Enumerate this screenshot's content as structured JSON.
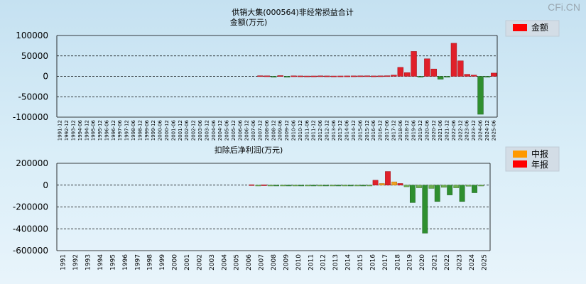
{
  "brand": "CFi.CN",
  "chart_data": [
    {
      "type": "bar",
      "title": "供销大集(000564)非经常损益合计",
      "subtitle": "金额(万元)",
      "ylabel": "金额(万元)",
      "ylim": [
        -100000,
        100000
      ],
      "yticks": [
        100000,
        50000,
        0,
        -50000,
        -100000
      ],
      "ytick_labels": [
        "100000",
        "50000",
        "0",
        "-50000",
        "-100000"
      ],
      "legend": [
        {
          "label": "金额",
          "color": "#ff0000"
        }
      ],
      "legend_position": "top-right",
      "colors": {
        "positive": "#e0202a",
        "negative": "#2f8f2f"
      },
      "categories": [
        "1991-12",
        "1992-12",
        "1993-12",
        "1994-06",
        "1994-12",
        "1995-06",
        "1995-12",
        "1996-06",
        "1996-12",
        "1997-06",
        "1997-12",
        "1998-06",
        "1998-12",
        "1999-06",
        "1999-12",
        "2000-06",
        "2000-12",
        "2001-06",
        "2001-12",
        "2002-06",
        "2002-12",
        "2003-06",
        "2003-12",
        "2004-06",
        "2004-12",
        "2005-06",
        "2005-12",
        "2006-06",
        "2006-12",
        "2007-06",
        "2007-12",
        "2008-06",
        "2008-12",
        "2009-06",
        "2009-12",
        "2010-06",
        "2010-12",
        "2011-06",
        "2011-12",
        "2012-06",
        "2012-12",
        "2013-06",
        "2013-12",
        "2014-06",
        "2014-12",
        "2015-06",
        "2015-12",
        "2016-06",
        "2016-12",
        "2017-06",
        "2017-12",
        "2018-06",
        "2018-12",
        "2019-06",
        "2019-12",
        "2020-06",
        "2020-12",
        "2021-06",
        "2021-12",
        "2022-06",
        "2022-12",
        "2023-06",
        "2023-12",
        "2024-06",
        "2024-12",
        "2025-06"
      ],
      "values": [
        null,
        null,
        null,
        null,
        null,
        null,
        null,
        null,
        null,
        null,
        null,
        null,
        null,
        null,
        null,
        null,
        null,
        null,
        null,
        null,
        null,
        null,
        null,
        null,
        null,
        null,
        null,
        null,
        null,
        null,
        1500,
        1200,
        -1500,
        1800,
        -2000,
        1200,
        1000,
        800,
        900,
        1200,
        1000,
        800,
        900,
        1000,
        1100,
        1200,
        1300,
        1000,
        1200,
        1500,
        3000,
        22000,
        9000,
        61000,
        -2000,
        43000,
        18000,
        -7000,
        -2000,
        81000,
        38000,
        5000,
        3000,
        -93000,
        -1000,
        8000
      ]
    },
    {
      "type": "bar",
      "title": "扣除后净利润(万元)",
      "ylabel": "扣除后净利润(万元)",
      "ylim": [
        -600000,
        200000
      ],
      "yticks": [
        200000,
        0,
        -200000,
        -400000,
        -600000
      ],
      "ytick_labels": [
        "200000",
        "0",
        "-200000",
        "-400000",
        "-600000"
      ],
      "legend": [
        {
          "label": "中报",
          "color": "#ff9900"
        },
        {
          "label": "年报",
          "color": "#ff0000"
        }
      ],
      "legend_position": "top-right",
      "categories": [
        "1991",
        "1992",
        "1993",
        "1994",
        "1995",
        "1996",
        "1997",
        "1998",
        "1999",
        "2000",
        "2001",
        "2002",
        "2003",
        "2004",
        "2005",
        "2006",
        "2007",
        "2008",
        "2009",
        "2010",
        "2011",
        "2012",
        "2013",
        "2014",
        "2015",
        "2016",
        "2017",
        "2018",
        "2019",
        "2020",
        "2021",
        "2022",
        "2023",
        "2024",
        "2025"
      ],
      "series": [
        {
          "name": "中报",
          "values": [
            null,
            null,
            null,
            null,
            null,
            null,
            null,
            null,
            null,
            null,
            null,
            null,
            null,
            null,
            null,
            null,
            -2000,
            -3000,
            -2000,
            -2000,
            -2000,
            -2000,
            -2000,
            -2000,
            -2000,
            -2000,
            15000,
            30000,
            -15000,
            -25000,
            -30000,
            -20000,
            -25000,
            -10000,
            -8000
          ]
        },
        {
          "name": "年报",
          "values": [
            null,
            null,
            null,
            null,
            null,
            null,
            null,
            null,
            null,
            null,
            null,
            null,
            null,
            null,
            null,
            4000,
            3000,
            -4000,
            -3000,
            -3000,
            -3000,
            -3000,
            -3000,
            -3000,
            -3000,
            45000,
            125000,
            15000,
            -160000,
            -440000,
            -150000,
            -90000,
            -150000,
            -70000,
            null
          ]
        }
      ]
    }
  ]
}
